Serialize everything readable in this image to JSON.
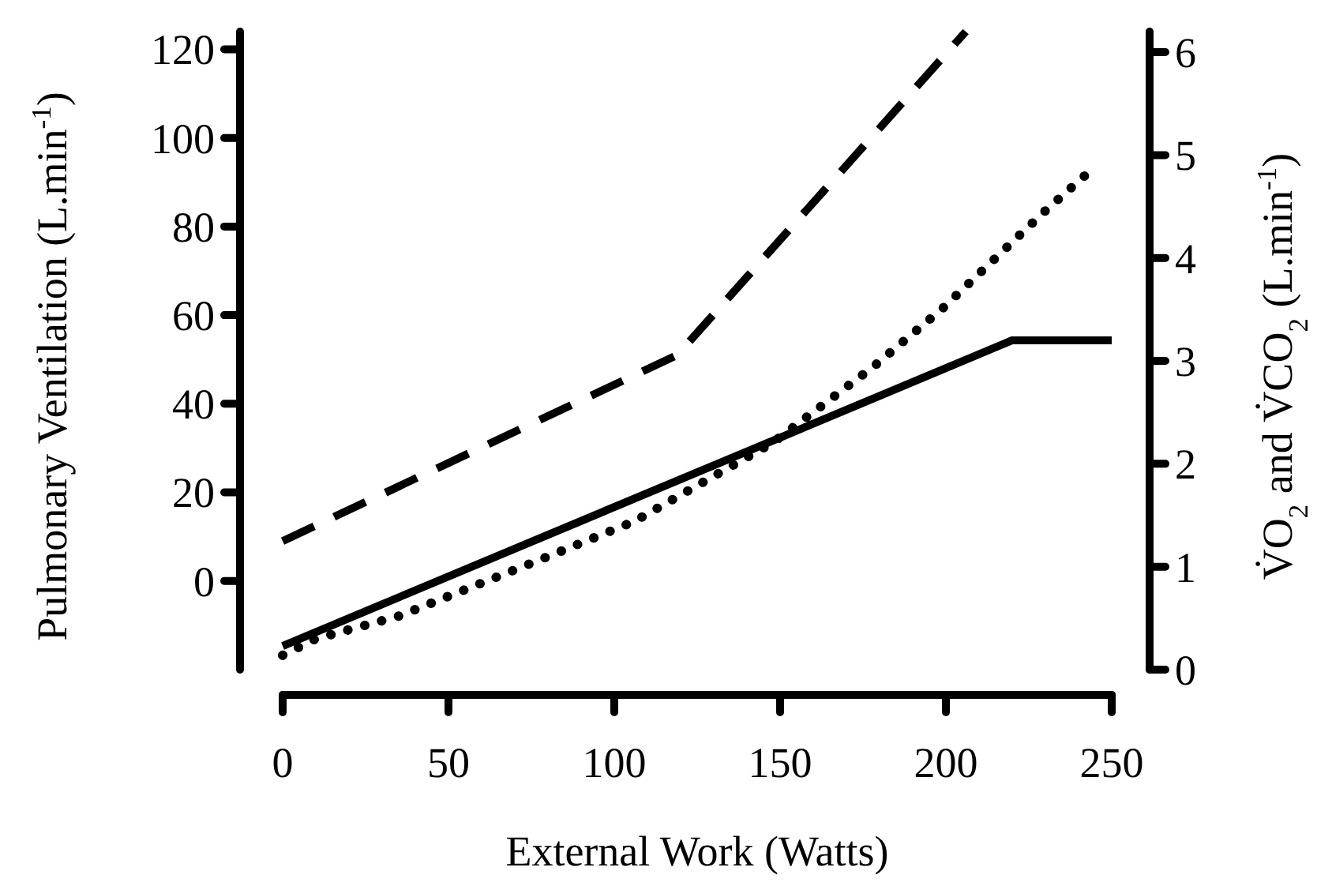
{
  "chart_data": {
    "type": "line",
    "xlabel": "External Work (Watts)",
    "ylabel": "Pulmonary Ventilation (L.min$^{-1}$)",
    "y2label": "V̇O$_{2}$ and V̇CO$_{2}$ (L.min$^{-1}$)",
    "xlim": [
      0,
      250
    ],
    "xticks": [
      0,
      50,
      100,
      150,
      200,
      250
    ],
    "ylim": [
      -20,
      124
    ],
    "yticks": [
      0,
      20,
      40,
      60,
      80,
      100,
      120
    ],
    "y2lim": [
      0,
      6.2
    ],
    "y2ticks": [
      0,
      1,
      2,
      3,
      4,
      5,
      6
    ],
    "grid": false,
    "marker": "none",
    "series": [
      {
        "color": "#000000",
        "line_style": "dashed",
        "x": [
          0,
          119,
          206
        ],
        "values": [
          9,
          51,
          124
        ]
      },
      {
        "color": "#000000",
        "line_style": "solid",
        "axis": "y2",
        "x": [
          0,
          220,
          250
        ],
        "values": [
          0.23,
          3.2,
          3.2
        ]
      },
      {
        "color": "#000000",
        "line_style": "dotted",
        "axis": "y2",
        "x": [
          0,
          10,
          35,
          77,
          106,
          148,
          178,
          199,
          229,
          245
        ],
        "values": [
          0.14,
          0.3,
          0.52,
          1.06,
          1.44,
          2.21,
          2.94,
          3.51,
          4.43,
          4.89
        ]
      }
    ]
  }
}
